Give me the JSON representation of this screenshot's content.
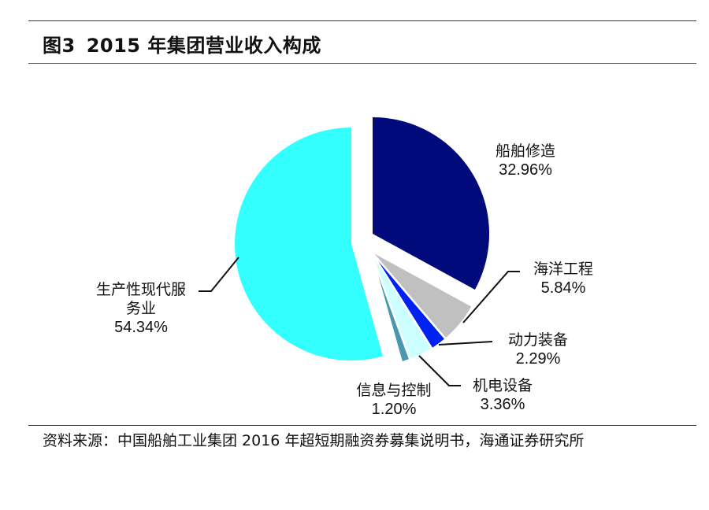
{
  "figure": {
    "number": "图3",
    "title": "2015 年集团营业收入构成"
  },
  "source": "资料来源：中国船舶工业集团 2016 年超短期融资券募集说明书，海通证券研究所",
  "chart_data": {
    "type": "pie",
    "title": "2015 年集团营业收入构成",
    "exploded": true,
    "start_angle_deg": 0,
    "direction": "clockwise",
    "legend": "none (data labels with leader lines)",
    "categories": [
      "船舶修造",
      "海洋工程",
      "动力装备",
      "机电设备",
      "信息与控制",
      "生产性现代服务业"
    ],
    "values": [
      32.96,
      5.84,
      2.29,
      3.36,
      1.2,
      54.34
    ],
    "value_labels": [
      "32.96%",
      "5.84%",
      "2.29%",
      "3.36%",
      "1.20%",
      "54.34%"
    ],
    "colors": [
      "#000a7a",
      "#c0c0c0",
      "#0022f0",
      "#ccffff",
      "#4a98b0",
      "#33ffff"
    ]
  },
  "labels": {
    "shipbuilding": {
      "name": "船舶修造",
      "pct": "32.96%"
    },
    "offshore": {
      "name": "海洋工程",
      "pct": "5.84%"
    },
    "power": {
      "name": "动力装备",
      "pct": "2.29%"
    },
    "electromech": {
      "name": "机电设备",
      "pct": "3.36%"
    },
    "info": {
      "name": "信息与控制",
      "pct": "1.20%"
    },
    "services": {
      "name_line1": "生产性现代服",
      "name_line2": "务业",
      "pct": "54.34%"
    }
  }
}
